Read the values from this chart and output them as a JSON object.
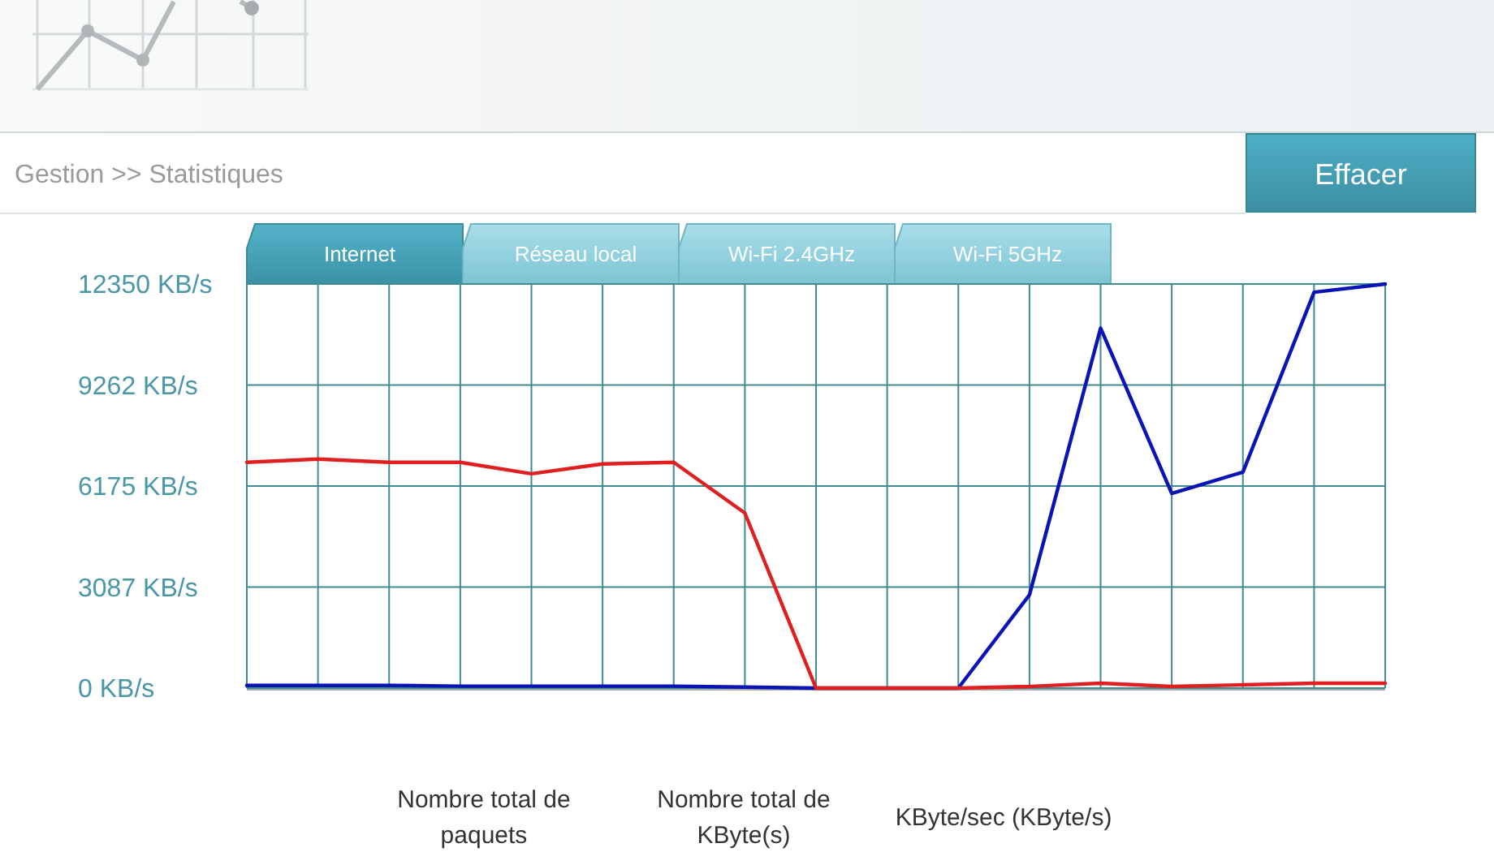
{
  "chart_data": {
    "type": "line",
    "title": "Gestion >> Statistiques",
    "annotations": [
      "Internet",
      "Réseau local",
      "Wi-Fi 2.4GHz",
      "Wi-Fi 5GHz",
      "Effacer",
      "Nombre total de paquets",
      "Nombre total de KByte(s)",
      "KByte/sec (KByte/s)"
    ],
    "categories": [
      null,
      null,
      null,
      null,
      null,
      null,
      null,
      null,
      null,
      null,
      null,
      null,
      null,
      null,
      null,
      null,
      null
    ],
    "series": [
      {
        "color": "#0a14b4",
        "values": [
          80,
          80,
          80,
          60,
          60,
          60,
          60,
          30,
          0,
          0,
          0,
          2850,
          11000,
          5950,
          6600,
          12100,
          12350
        ]
      },
      {
        "color": "#e02020",
        "values": [
          6900,
          7000,
          6900,
          6900,
          6550,
          6850,
          6900,
          5350,
          0,
          0,
          0,
          50,
          150,
          50,
          100,
          150,
          150
        ]
      }
    ],
    "ylim": [
      0,
      12350
    ],
    "yticks": [
      {
        "value": 0,
        "label": "0 KB/s"
      },
      {
        "value": 3087,
        "label": "3087 KB/s"
      },
      {
        "value": 6175,
        "label": "6175 KB/s"
      },
      {
        "value": 9262,
        "label": "9262 KB/s"
      },
      {
        "value": 12350,
        "label": "12350 KB/s"
      }
    ],
    "grid": true
  }
}
